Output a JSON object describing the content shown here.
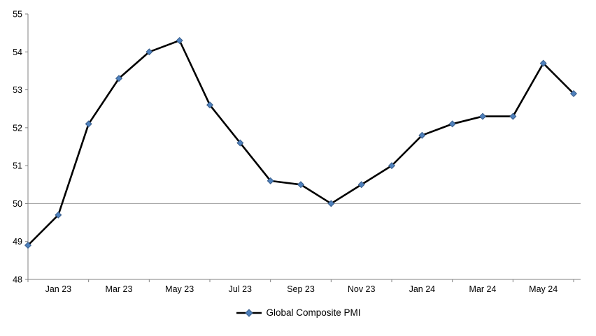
{
  "page": {
    "background": "#FFFFFF"
  },
  "chart_data": {
    "type": "line",
    "title": "",
    "legend": "Global Composite PMI",
    "categories": [
      "Dec 22",
      "Jan 23",
      "Feb 23",
      "Mar 23",
      "Apr 23",
      "May 23",
      "Jun 23",
      "Jul 23",
      "Aug 23",
      "Sep 23",
      "Oct 23",
      "Nov 23",
      "Dec 23",
      "Jan 24",
      "Feb 24",
      "Mar 24",
      "Apr 24",
      "May 24",
      "Jun 24"
    ],
    "values": [
      48.9,
      49.7,
      52.1,
      53.3,
      54.0,
      54.3,
      52.6,
      51.6,
      50.6,
      50.5,
      50.0,
      50.5,
      51.0,
      51.8,
      52.1,
      52.3,
      52.3,
      53.7,
      52.9
    ],
    "ylim": [
      48,
      55
    ],
    "y_tick_step": 1,
    "y_tick_labels": [
      "48",
      "49",
      "50",
      "51",
      "52",
      "53",
      "54",
      "55"
    ],
    "x_tick_labels": [
      "Jan 23",
      "Mar 23",
      "May 23",
      "Jul 23",
      "Sep 23",
      "Nov 23",
      "Jan 24",
      "Mar 24",
      "May 24"
    ],
    "x_tick_indices": [
      1,
      3,
      5,
      7,
      9,
      11,
      13,
      15,
      17
    ],
    "ref_line_y": 50,
    "grid": false,
    "legend_position": "bottom",
    "colors": {
      "line": "#000000",
      "marker_fill": "#4F81BD",
      "marker_stroke": "#385D8A",
      "axis": "#808080",
      "ref_line": "#999999",
      "text": "#000000"
    }
  }
}
